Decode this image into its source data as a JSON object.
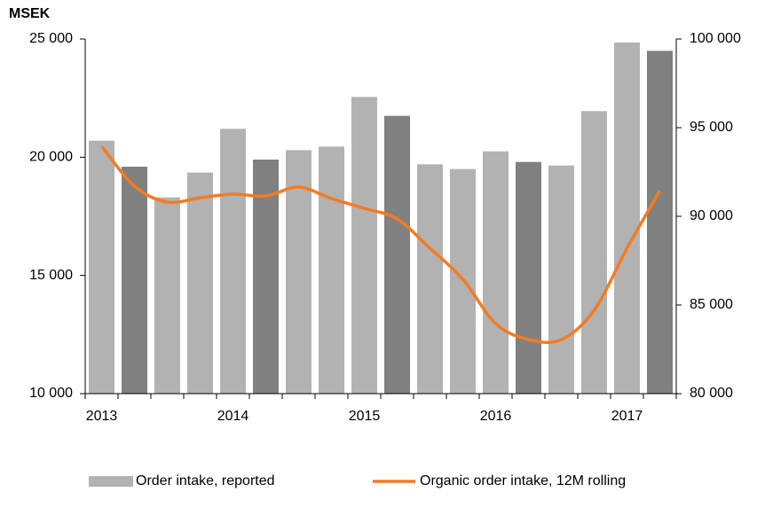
{
  "chart_data": {
    "type": "bar_line",
    "y_axis_title": "MSEK",
    "categories": [
      "2013",
      null,
      null,
      null,
      "2014",
      null,
      null,
      null,
      "2015",
      null,
      null,
      null,
      "2016",
      null,
      null,
      null,
      "2017",
      null
    ],
    "series": [
      {
        "name": "Order intake, reported",
        "type": "bar",
        "color": "#b2b2b2",
        "colors": [
          "#b2b2b2",
          "#808080",
          "#b2b2b2",
          "#b2b2b2",
          "#b2b2b2",
          "#808080",
          "#b2b2b2",
          "#b2b2b2",
          "#b2b2b2",
          "#808080",
          "#b2b2b2",
          "#b2b2b2",
          "#b2b2b2",
          "#808080",
          "#b2b2b2",
          "#b2b2b2",
          "#b2b2b2",
          "#808080"
        ],
        "values": [
          20700,
          19600,
          18300,
          19350,
          21200,
          19900,
          20300,
          20450,
          22550,
          21750,
          19700,
          19500,
          20250,
          19800,
          19650,
          21950,
          24850,
          24500
        ]
      },
      {
        "name": "Organic order intake, 12M rolling",
        "type": "line",
        "axis": "y2",
        "color": "#f47b20",
        "values": [
          93950,
          91700,
          90800,
          91050,
          91250,
          91150,
          91650,
          91000,
          90450,
          89850,
          88200,
          86450,
          83950,
          83050,
          83050,
          84700,
          88200,
          91450
        ]
      }
    ],
    "ylim": [
      10000,
      25000
    ],
    "yticks": [
      {
        "value": 10000,
        "label": "10 000"
      },
      {
        "value": 15000,
        "label": "15 000"
      },
      {
        "value": 20000,
        "label": "20 000"
      },
      {
        "value": 25000,
        "label": "25 000"
      }
    ],
    "y2lim": [
      80000,
      100000
    ],
    "y2ticks": [
      {
        "value": 80000,
        "label": "80 000"
      },
      {
        "value": 85000,
        "label": "85 000"
      },
      {
        "value": 90000,
        "label": "90 000"
      },
      {
        "value": 95000,
        "label": "95 000"
      },
      {
        "value": 100000,
        "label": "100 000"
      }
    ],
    "legend": "bottom"
  }
}
